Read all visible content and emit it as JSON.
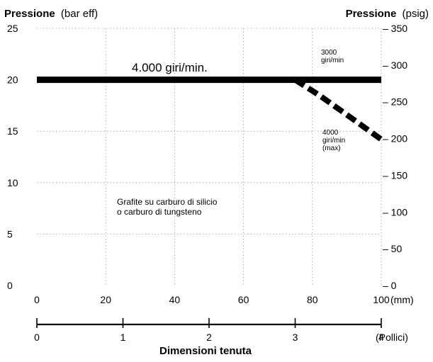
{
  "chart_data": {
    "type": "line",
    "left_axis_title_bold": "Pressione",
    "left_axis_title_unit": "(bar eff)",
    "right_axis_title_bold": "Pressione",
    "right_axis_title_unit": "(psig)",
    "xlabel": "Dimensioni tenuta",
    "x_mm_ticks": [
      "0",
      "20",
      "40",
      "60",
      "80",
      "100"
    ],
    "x_mm_unit": "(mm)",
    "x_in_ticks": [
      "0",
      "1",
      "2",
      "3",
      "4"
    ],
    "x_in_unit": "(Pollici)",
    "y_left_ticks": [
      "0",
      "5",
      "10",
      "15",
      "20",
      "25"
    ],
    "y_right_ticks": [
      "– 0",
      "– 50",
      "– 100",
      "– 150",
      "– 200",
      "– 250",
      "– 300",
      "– 350"
    ],
    "xlim": [
      0,
      100
    ],
    "ylim": [
      0,
      25
    ],
    "y2lim": [
      0,
      350
    ],
    "grid": true,
    "series": [
      {
        "name": "4.000 giri/min.",
        "style": "solid",
        "color": "#000000",
        "x": [
          0,
          75,
          100
        ],
        "y": [
          20,
          20,
          20
        ]
      },
      {
        "name": "4000 giri/min (max)",
        "style": "dashed",
        "color": "#000000",
        "x": [
          75,
          82,
          90,
          100
        ],
        "y": [
          20,
          18.5,
          16.6,
          14.2
        ]
      }
    ],
    "annotations": {
      "line_label": "4.000 giri/min.",
      "upper_label": [
        "3000",
        "giri/min"
      ],
      "lower_label": [
        "4000",
        "giri/min",
        "(max)"
      ],
      "material": [
        "Grafite su carburo di silicio",
        "o carburo di tungsteno"
      ]
    }
  }
}
